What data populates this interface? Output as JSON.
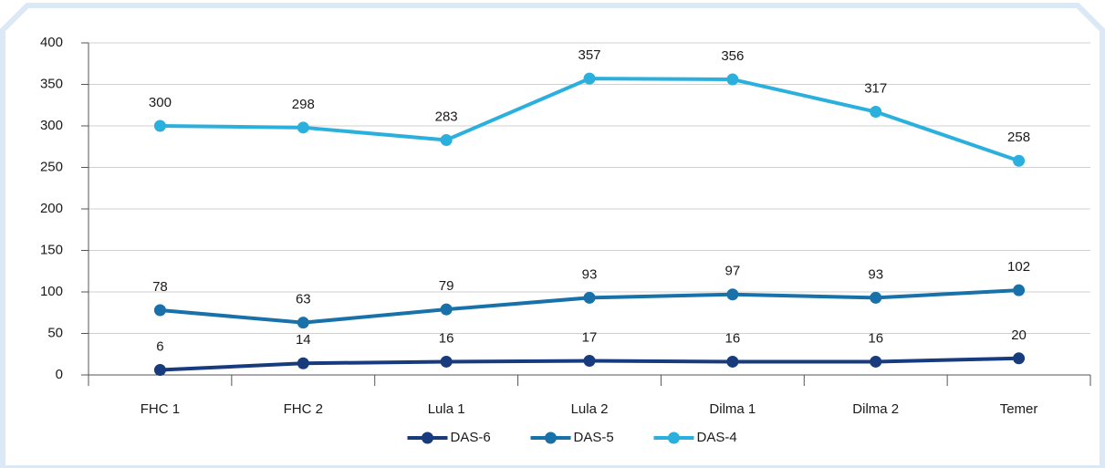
{
  "chart_data": {
    "type": "line",
    "categories": [
      "FHC 1",
      "FHC 2",
      "Lula 1",
      "Lula 2",
      "Dilma 1",
      "Dilma 2",
      "Temer"
    ],
    "series": [
      {
        "name": "DAS-6",
        "color": "#173b7d",
        "values": [
          6,
          14,
          16,
          17,
          16,
          16,
          20
        ]
      },
      {
        "name": "DAS-5",
        "color": "#1872a9",
        "values": [
          78,
          63,
          79,
          93,
          97,
          93,
          102
        ]
      },
      {
        "name": "DAS-4",
        "color": "#2bb0de",
        "values": [
          300,
          298,
          283,
          357,
          356,
          317,
          258
        ]
      }
    ],
    "ylim": [
      0,
      400
    ],
    "yticks": [
      0,
      50,
      100,
      150,
      200,
      250,
      300,
      350,
      400
    ],
    "grid": true,
    "legend": "bottom"
  }
}
